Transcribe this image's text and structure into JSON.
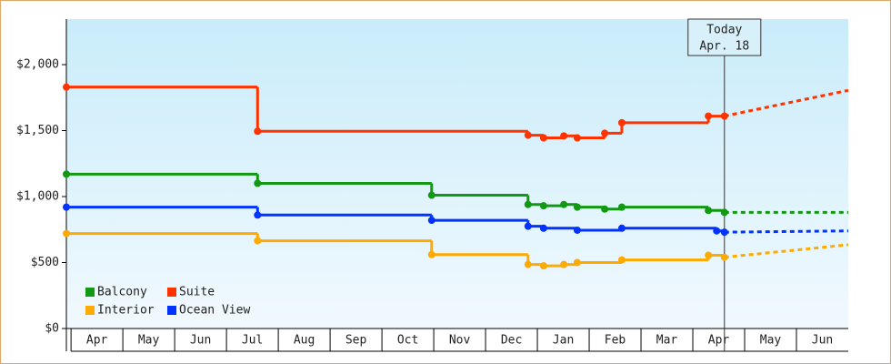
{
  "chart_data": {
    "type": "step-line",
    "categories": [
      "Apr",
      "May",
      "Jun",
      "Jul",
      "Aug",
      "Sep",
      "Oct",
      "Nov",
      "Dec",
      "Jan",
      "Feb",
      "Mar",
      "Apr",
      "May",
      "Jun"
    ],
    "xlim": [
      -0.09,
      15
    ],
    "ylim": [
      0,
      2345
    ],
    "yticks": [
      {
        "value": 0,
        "label": "$0"
      },
      {
        "value": 500,
        "label": "$500"
      },
      {
        "value": 1000,
        "label": "$1,000"
      },
      {
        "value": 1500,
        "label": "$1,500"
      },
      {
        "value": 2000,
        "label": "$2,000"
      }
    ],
    "annotation": {
      "lines": [
        "Today",
        "Apr. 18"
      ],
      "x": 12.61
    },
    "forecast_x": [
      12.61,
      15
    ],
    "series": [
      {
        "name": "Balcony",
        "color": "#119911",
        "x": [
          -0.09,
          3.6,
          6.96,
          8.82,
          9.12,
          9.51,
          9.77,
          10.3,
          10.63,
          12.3,
          12.61
        ],
        "values": [
          1170,
          1100,
          1010,
          940,
          930,
          940,
          920,
          905,
          920,
          895,
          880
        ],
        "forecast_values": [
          880,
          880
        ]
      },
      {
        "name": "Suite",
        "color": "#ff3300",
        "x": [
          -0.09,
          3.6,
          8.82,
          9.12,
          9.51,
          9.77,
          10.3,
          10.63,
          12.3,
          12.61
        ],
        "values": [
          1830,
          1495,
          1465,
          1445,
          1460,
          1445,
          1480,
          1560,
          1610,
          1610
        ],
        "forecast_values": [
          1610,
          1805
        ]
      },
      {
        "name": "Interior",
        "color": "#ffaa00",
        "x": [
          -0.09,
          3.6,
          6.96,
          8.82,
          9.12,
          9.51,
          9.77,
          10.63,
          12.3,
          12.61
        ],
        "values": [
          720,
          665,
          560,
          485,
          475,
          485,
          500,
          520,
          555,
          540
        ],
        "forecast_values": [
          540,
          635
        ]
      },
      {
        "name": "Ocean View",
        "color": "#0033ff",
        "x": [
          -0.09,
          3.6,
          6.96,
          8.82,
          9.12,
          9.77,
          10.63,
          12.46,
          12.61
        ],
        "values": [
          920,
          860,
          820,
          775,
          760,
          745,
          760,
          740,
          730
        ],
        "forecast_values": [
          730,
          740
        ]
      }
    ]
  }
}
